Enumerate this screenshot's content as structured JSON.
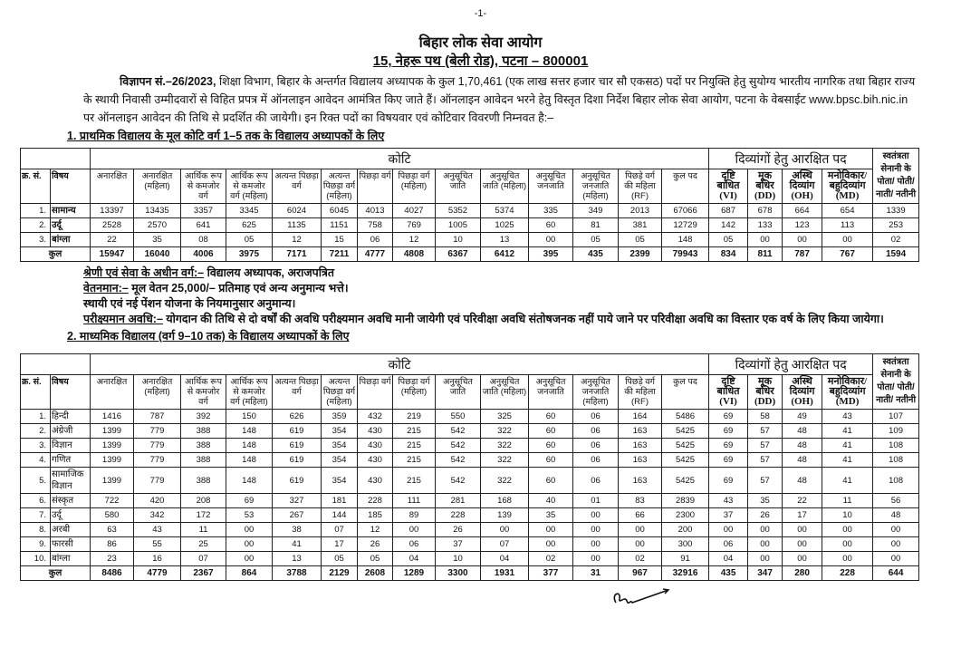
{
  "page_number": "-1-",
  "header": {
    "title": "बिहार लोक सेवा आयोग",
    "address": "15, नेहरू पथ (बेली रोड), पटना – 800001"
  },
  "intro": {
    "advt_label": "विज्ञापन सं.–26/2023,",
    "text": " शिक्षा विभाग, बिहार के अन्तर्गत विद्यालय अध्यापक के कुल 1,70,461 (एक लाख सत्तर हजार चार सौ एकसठ) पदों पर नियुक्ति हेतु सुयोग्य भारतीय नागरिक तथा बिहार राज्य के स्थायी निवासी उम्मीदवारों से विहित प्रपत्र में ऑनलाइन आवेदन आमंत्रित किए जाते हैं। ऑनलाइन आवेदन भरने हेतु विस्तृत दिशा निर्देश बिहार लोक सेवा आयोग, पटना के वेबसाईट www.bpsc.bih.nic.in पर ऑनलाइन आवेदन की तिथि से प्रदर्शित की जायेगी। इन रिक्त पदों का विषयवार एवं कोटिवार विवरणी निम्नवत है:–"
  },
  "section1_title": "1. प्राथमिक विद्यालय के मूल कोटि वर्ग 1–5 तक के विद्यालय अध्यापकों के लिए",
  "section2_title": "2. माध्यमिक विद्यालय (वर्ग 9–10 तक) के विद्यालय अध्यापकों के लिए",
  "notes": {
    "class_label": "श्रेणी एवं सेवा के अधीन वर्ग:–",
    "class_value": " विद्यालय अध्यापक, अराजपत्रित",
    "pay_label": "वेतनमान:–",
    "pay_value": " मूल वेतन 25,000/– प्रतिमाह एवं अन्य अनुमान्य भत्ते।",
    "pension": "स्थायी एवं नई पेंशन योजना के नियमानुसार अनुमान्य।",
    "probation_label": "परीक्ष्यमान अवधि:–",
    "probation_value": " योगदान की तिथि से दो वर्षों की अवधि परीक्ष्यमान अवधि मानी जायेगी एवं परिवीक्षा अवधि संतोषजनक नहीं पाये जाने पर परिवीक्षा अवधि का विस्तार एक वर्ष के लिए किया जायेगा।"
  },
  "table_headers": {
    "group_koti": "कोटि",
    "group_divyang": "दिव्यांगों हेतु आरक्षित पद",
    "freedom_fighter": "स्वतंत्रता सेनानी के पोता/ पोती/ नाती/ नतीनी",
    "columns": [
      "क्र. सं.",
      "विषय",
      "अनारक्षित",
      "अनारक्षित (महिला)",
      "आर्थिक रूप से कमजोर वर्ग",
      "आर्थिक रूप से कमजोर वर्ग (महिला)",
      "अत्यन्त पिछड़ा वर्ग",
      "अत्यन्त पिछड़ा वर्ग (महिला)",
      "पिछड़ा वर्ग",
      "पिछड़ा वर्ग (महिला)",
      "अनुसूचित जाति",
      "अनुसूचित जाति (महिला)",
      "अनुसूचित जनजाति",
      "अनुसूचित जनजाति (महिला)",
      "पिछड़े वर्ग की महिला (RF)",
      "कुल पद",
      "दृष्टि बाधित (VI)",
      "मूक बधिर (DD)",
      "अस्थि दिव्यांग (OH)",
      "मनोविकार/ बहुदिव्यांग (MD)"
    ],
    "total_label": "कुल"
  },
  "table1": {
    "rows": [
      {
        "sno": "1.",
        "subject": "सामान्य",
        "values": [
          "13397",
          "13435",
          "3357",
          "3345",
          "6024",
          "6045",
          "4013",
          "4027",
          "5352",
          "5374",
          "335",
          "349",
          "2013",
          "67066",
          "687",
          "678",
          "664",
          "654",
          "1339"
        ]
      },
      {
        "sno": "2.",
        "subject": "उर्दू",
        "values": [
          "2528",
          "2570",
          "641",
          "625",
          "1135",
          "1151",
          "758",
          "769",
          "1005",
          "1025",
          "60",
          "81",
          "381",
          "12729",
          "142",
          "133",
          "123",
          "113",
          "253"
        ]
      },
      {
        "sno": "3.",
        "subject": "बांग्ला",
        "values": [
          "22",
          "35",
          "08",
          "05",
          "12",
          "15",
          "06",
          "12",
          "10",
          "13",
          "00",
          "05",
          "05",
          "148",
          "05",
          "00",
          "00",
          "00",
          "02"
        ]
      }
    ],
    "total": [
      "15947",
      "16040",
      "4006",
      "3975",
      "7171",
      "7211",
      "4777",
      "4808",
      "6367",
      "6412",
      "395",
      "435",
      "2399",
      "79943",
      "834",
      "811",
      "787",
      "767",
      "1594"
    ]
  },
  "table2": {
    "rows": [
      {
        "sno": "1.",
        "subject": "हिन्दी",
        "values": [
          "1416",
          "787",
          "392",
          "150",
          "626",
          "359",
          "432",
          "219",
          "550",
          "325",
          "60",
          "06",
          "164",
          "5486",
          "69",
          "58",
          "49",
          "43",
          "107"
        ]
      },
      {
        "sno": "2.",
        "subject": "अंग्रेजी",
        "values": [
          "1399",
          "779",
          "388",
          "148",
          "619",
          "354",
          "430",
          "215",
          "542",
          "322",
          "60",
          "06",
          "163",
          "5425",
          "69",
          "57",
          "48",
          "41",
          "109"
        ]
      },
      {
        "sno": "3.",
        "subject": "विज्ञान",
        "values": [
          "1399",
          "779",
          "388",
          "148",
          "619",
          "354",
          "430",
          "215",
          "542",
          "322",
          "60",
          "06",
          "163",
          "5425",
          "69",
          "57",
          "48",
          "41",
          "108"
        ]
      },
      {
        "sno": "4.",
        "subject": "गणित",
        "values": [
          "1399",
          "779",
          "388",
          "148",
          "619",
          "354",
          "430",
          "215",
          "542",
          "322",
          "60",
          "06",
          "163",
          "5425",
          "69",
          "57",
          "48",
          "41",
          "108"
        ]
      },
      {
        "sno": "5.",
        "subject": "सामाजिक विज्ञान",
        "values": [
          "1399",
          "779",
          "388",
          "148",
          "619",
          "354",
          "430",
          "215",
          "542",
          "322",
          "60",
          "06",
          "163",
          "5425",
          "69",
          "57",
          "48",
          "41",
          "108"
        ]
      },
      {
        "sno": "6.",
        "subject": "संस्कृत",
        "values": [
          "722",
          "420",
          "208",
          "69",
          "327",
          "181",
          "228",
          "111",
          "281",
          "168",
          "40",
          "01",
          "83",
          "2839",
          "43",
          "35",
          "22",
          "11",
          "56"
        ]
      },
      {
        "sno": "7.",
        "subject": "उर्दू",
        "values": [
          "580",
          "342",
          "172",
          "53",
          "267",
          "144",
          "185",
          "89",
          "228",
          "139",
          "35",
          "00",
          "66",
          "2300",
          "37",
          "26",
          "17",
          "10",
          "48"
        ]
      },
      {
        "sno": "8.",
        "subject": "अरबी",
        "values": [
          "63",
          "43",
          "11",
          "00",
          "38",
          "07",
          "12",
          "00",
          "26",
          "00",
          "00",
          "00",
          "00",
          "200",
          "00",
          "00",
          "00",
          "00",
          "00"
        ]
      },
      {
        "sno": "9.",
        "subject": "फारसी",
        "values": [
          "86",
          "55",
          "25",
          "00",
          "41",
          "17",
          "26",
          "06",
          "37",
          "07",
          "00",
          "00",
          "00",
          "300",
          "06",
          "00",
          "00",
          "00",
          "00"
        ]
      },
      {
        "sno": "10.",
        "subject": "बांग्ला",
        "values": [
          "23",
          "16",
          "07",
          "00",
          "13",
          "05",
          "05",
          "04",
          "10",
          "04",
          "02",
          "00",
          "02",
          "91",
          "04",
          "00",
          "00",
          "00",
          "00"
        ]
      }
    ],
    "total": [
      "8486",
      "4779",
      "2367",
      "864",
      "3788",
      "2129",
      "2608",
      "1289",
      "3300",
      "1931",
      "377",
      "31",
      "967",
      "32916",
      "435",
      "347",
      "280",
      "228",
      "644"
    ]
  },
  "signature": "handwritten-signature"
}
